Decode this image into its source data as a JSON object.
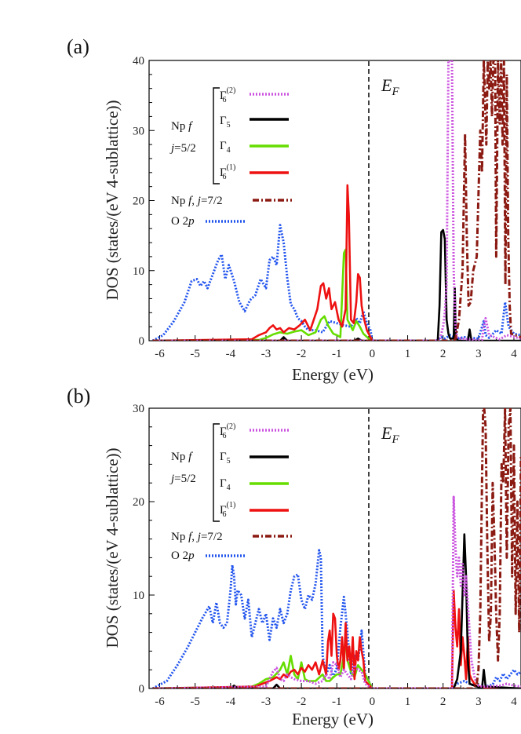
{
  "colors": {
    "gamma6_2": "#cc55e0",
    "gamma5": "#000000",
    "gamma4": "#66dd00",
    "gamma6_1": "#ee1111",
    "j72": "#8b1a12",
    "o2p": "#2255ee"
  },
  "legend_text": {
    "np_f": "Np f",
    "j52": "j=5/2",
    "gamma6_2": "Γ6(2)",
    "gamma5": "Γ5",
    "gamma4": "Γ4",
    "gamma6_1": "Γ6(1)",
    "npf_j72": "Np f,  j=7/2",
    "o2p": "O 2p",
    "fermi": "E_F"
  },
  "chart_data": [
    {
      "panel": "(a)",
      "type": "line",
      "xlabel": "Energy (eV)",
      "ylabel": "DOS (states/(eV 4-sublattice))",
      "xlim": [
        -6.3,
        4.2
      ],
      "ylim": [
        0,
        40
      ],
      "xticks": [
        -6,
        -5,
        -4,
        -3,
        -2,
        -1,
        0,
        1,
        2,
        3,
        4
      ],
      "yticks": [
        0,
        10,
        20,
        30,
        40
      ],
      "fermi_level": 0,
      "series": [
        {
          "key": "o2p",
          "name": "O 2p",
          "style": "dot",
          "x": [
            -6.2,
            -5.9,
            -5.6,
            -5.3,
            -5.1,
            -4.95,
            -4.85,
            -4.75,
            -4.65,
            -4.5,
            -4.35,
            -4.25,
            -4.15,
            -4.05,
            -3.9,
            -3.75,
            -3.6,
            -3.45,
            -3.3,
            -3.15,
            -3.0,
            -2.9,
            -2.8,
            -2.7,
            -2.6,
            -2.5,
            -2.4,
            -2.3,
            -2.2,
            -2.1,
            -2.0,
            -1.9,
            -1.8,
            -1.6,
            -1.4,
            -1.2,
            -1.0,
            -0.8,
            -0.6,
            -0.45,
            -0.35,
            -0.25,
            -0.15,
            -0.05,
            0,
            1.8,
            1.95,
            2.05,
            2.2,
            2.4,
            2.6,
            2.8,
            3.0,
            3.15,
            3.2,
            3.3,
            3.5,
            3.65,
            3.75,
            3.85,
            4.0,
            4.2
          ],
          "y": [
            0,
            0.8,
            2.8,
            5.5,
            8.5,
            8.8,
            7.8,
            8.5,
            7.5,
            9.5,
            11.5,
            12.3,
            8.8,
            10.8,
            8.5,
            5.5,
            4.2,
            5.8,
            6.5,
            8.8,
            7.5,
            11.5,
            12.0,
            10.8,
            16.5,
            14.0,
            9.0,
            5.2,
            4.5,
            3.2,
            2.8,
            2.0,
            1.5,
            1.5,
            1.2,
            2.8,
            2.5,
            2.2,
            2.0,
            3.2,
            2.5,
            4.2,
            2.5,
            1.5,
            0,
            0,
            0.5,
            0.3,
            0.8,
            0.3,
            0.5,
            0.4,
            0.3,
            2.8,
            0.8,
            0.4,
            1.5,
            1.0,
            5.5,
            2.0,
            1.0,
            0.8
          ]
        },
        {
          "key": "gamma4",
          "name": "Γ4",
          "style": "solid",
          "x": [
            -6.2,
            -3.2,
            -3.0,
            -2.8,
            -2.6,
            -2.4,
            -2.2,
            -2.0,
            -1.8,
            -1.6,
            -1.45,
            -1.35,
            -1.25,
            -1.1,
            -1.0,
            -0.9,
            -0.8,
            -0.75,
            -0.7,
            -0.65,
            -0.55,
            -0.45,
            -0.35,
            -0.25,
            -0.1,
            0
          ],
          "y": [
            0,
            0.1,
            0.4,
            0.9,
            1.2,
            1.0,
            1.3,
            1.5,
            0.8,
            1.2,
            3.0,
            3.5,
            2.2,
            1.0,
            0.8,
            0.5,
            12.5,
            13.0,
            3.0,
            2.5,
            1.5,
            2.8,
            2.0,
            1.0,
            0.3,
            0
          ]
        },
        {
          "key": "gamma6_1",
          "name": "Γ6(1)",
          "style": "solid",
          "x": [
            -6.2,
            -3.4,
            -3.2,
            -3.0,
            -2.9,
            -2.8,
            -2.7,
            -2.6,
            -2.5,
            -2.35,
            -2.2,
            -2.05,
            -1.9,
            -1.75,
            -1.55,
            -1.45,
            -1.38,
            -1.3,
            -1.22,
            -1.15,
            -1.05,
            -0.95,
            -0.85,
            -0.75,
            -0.7,
            -0.66,
            -0.6,
            -0.52,
            -0.45,
            -0.4,
            -0.35,
            -0.3,
            -0.25,
            -0.15,
            0
          ],
          "y": [
            0,
            0.2,
            0.8,
            1.2,
            1.8,
            2.2,
            1.6,
            1.8,
            1.2,
            1.8,
            1.6,
            2.2,
            3.0,
            1.5,
            4.5,
            7.8,
            8.2,
            6.0,
            7.5,
            4.5,
            5.5,
            3.0,
            2.0,
            4.5,
            22.2,
            18.0,
            3.0,
            2.5,
            5.5,
            9.5,
            9.0,
            5.0,
            3.5,
            1.5,
            0
          ]
        },
        {
          "key": "gamma5",
          "name": "Γ5",
          "style": "solid",
          "x": [
            -6.2,
            -2.6,
            -2.5,
            -2.4,
            -0.5,
            -0.4,
            -0.3,
            0,
            1.85,
            1.9,
            1.95,
            2.0,
            2.05,
            2.1,
            2.15,
            2.2,
            2.3,
            2.33,
            2.36,
            2.42,
            2.6,
            2.7,
            2.75,
            2.8,
            4.2
          ],
          "y": [
            0,
            0,
            0.5,
            0,
            0,
            0.3,
            0,
            0,
            0,
            5.0,
            15.5,
            15.8,
            14.5,
            3.0,
            1.0,
            0.3,
            0.3,
            7.5,
            0.5,
            0,
            0,
            0,
            1.6,
            0,
            0
          ]
        },
        {
          "key": "gamma6_2",
          "name": "Γ6(2)",
          "style": "dot",
          "x": [
            -6.2,
            -0.1,
            0,
            1.9,
            2.0,
            2.05,
            2.1,
            2.15,
            2.2,
            2.25,
            2.3,
            2.35,
            2.4,
            2.5,
            2.7,
            2.9,
            3.0,
            3.1,
            3.15,
            3.2,
            3.3,
            3.6,
            3.7,
            3.8,
            4.2
          ],
          "y": [
            0,
            0,
            0,
            0,
            2.0,
            4.0,
            8.0,
            40,
            40,
            40,
            10.0,
            2.0,
            0.5,
            0.3,
            0.2,
            0.1,
            0.1,
            0.1,
            2.0,
            3.2,
            0.8,
            0.2,
            0.5,
            0.8,
            0.3
          ]
        },
        {
          "key": "j72",
          "name": "Np f, j=7/2",
          "style": "dashdot",
          "x": [
            -6.2,
            2.3,
            2.35,
            2.45,
            2.55,
            2.62,
            2.67,
            2.72,
            2.78,
            2.85,
            2.95,
            3.05,
            3.1,
            3.15,
            3.18,
            3.22,
            3.26,
            3.3,
            3.34,
            3.38,
            3.42,
            3.47,
            3.5,
            3.55,
            3.6,
            3.64,
            3.68,
            3.72,
            3.76,
            3.8,
            3.84,
            3.88,
            3.92,
            4.2
          ],
          "y": [
            0,
            0,
            0.3,
            3.0,
            10.0,
            29.5,
            15.0,
            5.0,
            5.5,
            10.0,
            12.0,
            30.0,
            24.0,
            40,
            35,
            28,
            40,
            36,
            40,
            32,
            40,
            40,
            12,
            40,
            31,
            40,
            28,
            40,
            8,
            38,
            15,
            5,
            1,
            0.5
          ]
        }
      ]
    },
    {
      "panel": "(b)",
      "type": "line",
      "xlabel": "Energy (eV)",
      "ylabel": "DOS (states/(eV 4-sublattice))",
      "xlim": [
        -6.3,
        4.2
      ],
      "ylim": [
        0,
        30
      ],
      "xticks": [
        -6,
        -5,
        -4,
        -3,
        -2,
        -1,
        0,
        1,
        2,
        3,
        4
      ],
      "yticks": [
        0,
        10,
        20,
        30
      ],
      "fermi_level": 0,
      "series": [
        {
          "key": "o2p",
          "name": "O 2p",
          "style": "dot",
          "x": [
            -6.2,
            -5.8,
            -5.5,
            -5.2,
            -5.0,
            -4.8,
            -4.6,
            -4.5,
            -4.4,
            -4.3,
            -4.2,
            -4.1,
            -4.0,
            -3.95,
            -3.9,
            -3.85,
            -3.8,
            -3.7,
            -3.6,
            -3.5,
            -3.4,
            -3.3,
            -3.2,
            -3.1,
            -3.0,
            -2.9,
            -2.8,
            -2.7,
            -2.6,
            -2.5,
            -2.4,
            -2.3,
            -2.2,
            -2.1,
            -2.0,
            -1.9,
            -1.8,
            -1.7,
            -1.6,
            -1.5,
            -1.45,
            -1.4,
            -1.3,
            -1.2,
            -1.1,
            -1.0,
            -0.9,
            -0.8,
            -0.7,
            -0.6,
            -0.5,
            -0.4,
            -0.3,
            -0.2,
            -0.1,
            0,
            2.2,
            2.4,
            2.6,
            2.8,
            3.0,
            3.2,
            3.4,
            3.5,
            3.6,
            3.7,
            3.8,
            4.0,
            4.1,
            4.2
          ],
          "y": [
            0,
            0.8,
            2.5,
            4.5,
            6.0,
            7.5,
            8.8,
            7.0,
            9.2,
            7.0,
            6.5,
            7.0,
            10.5,
            13.2,
            12.0,
            9.0,
            10.5,
            10.0,
            7.5,
            9.5,
            5.5,
            7.0,
            8.5,
            7.0,
            8.0,
            5.2,
            7.5,
            6.5,
            8.5,
            7.0,
            8.0,
            10.5,
            12.0,
            12.2,
            9.5,
            8.5,
            10.0,
            9.5,
            11.2,
            14.8,
            14.0,
            3.5,
            1.5,
            2.5,
            1.2,
            2.2,
            6.5,
            9.8,
            6.0,
            1.5,
            3.5,
            3.0,
            6.2,
            1.5,
            0.8,
            0,
            0,
            0.5,
            0.8,
            0.4,
            0.3,
            0.2,
            0.4,
            1.2,
            0.8,
            1.6,
            1.0,
            2.0,
            1.5,
            1.8
          ]
        },
        {
          "key": "gamma4",
          "name": "Γ4",
          "style": "solid",
          "x": [
            -6.2,
            -3.4,
            -3.2,
            -3.0,
            -2.8,
            -2.6,
            -2.5,
            -2.4,
            -2.3,
            -2.2,
            -2.1,
            -2.0,
            -1.9,
            -1.8,
            -1.6,
            -1.4,
            -1.3,
            -1.2,
            -1.1,
            -1.0,
            -0.9,
            -0.8,
            -0.75,
            -0.7,
            -0.6,
            -0.5,
            -0.4,
            -0.3,
            -0.2,
            0
          ],
          "y": [
            0,
            0.2,
            0.5,
            1.0,
            1.2,
            2.0,
            2.8,
            1.5,
            3.5,
            1.5,
            1.0,
            2.8,
            1.0,
            0.8,
            0.8,
            1.5,
            0.8,
            0.8,
            1.2,
            1.5,
            1.5,
            3.5,
            5.5,
            3.0,
            1.8,
            1.2,
            2.5,
            2.0,
            1.5,
            0
          ]
        },
        {
          "key": "gamma6_1",
          "name": "Γ6(1)",
          "style": "solid",
          "x": [
            -6.2,
            -3.3,
            -3.1,
            -2.9,
            -2.8,
            -2.7,
            -2.6,
            -2.5,
            -2.4,
            -2.3,
            -2.2,
            -2.1,
            -2.0,
            -1.9,
            -1.8,
            -1.7,
            -1.6,
            -1.5,
            -1.4,
            -1.3,
            -1.25,
            -1.2,
            -1.15,
            -1.1,
            -1.05,
            -1.0,
            -0.95,
            -0.9,
            -0.85,
            -0.8,
            -0.75,
            -0.7,
            -0.65,
            -0.6,
            -0.55,
            -0.5,
            -0.45,
            -0.4,
            -0.35,
            -0.3,
            -0.25,
            -0.2,
            0,
            2.25,
            2.3,
            2.35,
            2.4,
            2.45,
            2.5,
            2.55,
            2.6,
            2.65,
            2.7,
            2.75,
            2.8,
            2.9,
            3.0,
            3.2,
            4.2
          ],
          "y": [
            0,
            0.2,
            0.5,
            0.8,
            1.0,
            1.2,
            1.0,
            1.5,
            1.2,
            1.8,
            2.0,
            1.5,
            2.2,
            1.8,
            2.5,
            2.0,
            2.8,
            1.5,
            3.0,
            1.5,
            5.0,
            6.2,
            3.5,
            8.0,
            7.5,
            3.5,
            2.0,
            3.0,
            5.5,
            2.0,
            7.0,
            3.0,
            4.5,
            2.0,
            5.5,
            1.0,
            4.0,
            3.0,
            5.5,
            4.0,
            3.0,
            0.8,
            0,
            0,
            10.5,
            6.5,
            4.5,
            8.5,
            2.5,
            5.5,
            3.5,
            1.0,
            5.5,
            1.5,
            1.0,
            0.4,
            0.2,
            0.1,
            0
          ]
        },
        {
          "key": "gamma5",
          "name": "Γ5",
          "style": "solid",
          "x": [
            -6.2,
            -4.0,
            -3.9,
            -3.8,
            -2.8,
            -2.7,
            -2.6,
            -0.5,
            0,
            2.3,
            2.4,
            2.5,
            2.55,
            2.6,
            2.65,
            2.7,
            2.75,
            3.1,
            3.15,
            3.2,
            4.2
          ],
          "y": [
            0,
            0,
            0.3,
            0,
            0,
            0.4,
            0,
            0,
            0,
            0,
            1.0,
            4.0,
            10.0,
            16.5,
            12.0,
            3.0,
            0.5,
            0,
            2.0,
            0.2,
            0
          ]
        },
        {
          "key": "gamma6_2",
          "name": "Γ6(2)",
          "style": "dot",
          "x": [
            -6.2,
            -3.0,
            -2.9,
            -2.8,
            -2.7,
            -2.6,
            -2.5,
            -2.4,
            -2.3,
            -2.2,
            -2.0,
            -1.8,
            -1.6,
            -1.4,
            -1.3,
            -1.2,
            -1.1,
            -1.0,
            -0.9,
            -0.8,
            -0.7,
            -0.6,
            -0.5,
            -0.4,
            -0.3,
            -0.2,
            0,
            2.25,
            2.3,
            2.35,
            2.4,
            2.45,
            2.5,
            2.55,
            2.6,
            2.65,
            2.7,
            2.8,
            2.9,
            3.0,
            3.1,
            3.3,
            3.6,
            3.8,
            4.0,
            4.2
          ],
          "y": [
            0,
            0.2,
            1.0,
            1.8,
            2.2,
            1.0,
            0.8,
            1.5,
            1.2,
            1.0,
            0.8,
            0.8,
            0.5,
            0.8,
            1.5,
            1.0,
            2.8,
            2.5,
            1.2,
            2.0,
            1.5,
            1.0,
            2.5,
            2.0,
            1.8,
            0.5,
            0,
            0,
            20.5,
            15.0,
            12.0,
            14.0,
            11.0,
            13.5,
            10.0,
            12.0,
            9.0,
            3.0,
            1.0,
            0.3,
            0.2,
            0.2,
            0.3,
            0.5,
            0.3,
            0.2
          ]
        },
        {
          "key": "j72",
          "name": "Np f, j=7/2",
          "style": "dashdot",
          "x": [
            -6.2,
            2.85,
            2.95,
            3.0,
            3.05,
            3.1,
            3.13,
            3.16,
            3.2,
            3.25,
            3.3,
            3.35,
            3.4,
            3.45,
            3.5,
            3.55,
            3.6,
            3.65,
            3.7,
            3.75,
            3.8,
            3.85,
            3.9,
            3.95,
            4.0,
            4.05,
            4.1,
            4.15,
            4.2
          ],
          "y": [
            0,
            0,
            0.5,
            2.0,
            8.0,
            22.0,
            30,
            30,
            28.0,
            15.0,
            5.0,
            8.0,
            22.0,
            16.0,
            8.0,
            3.0,
            8.0,
            24.0,
            22.0,
            30,
            14.0,
            28.0,
            30,
            12.0,
            26.0,
            8.0,
            20.0,
            6.0,
            25.0
          ]
        }
      ]
    }
  ]
}
